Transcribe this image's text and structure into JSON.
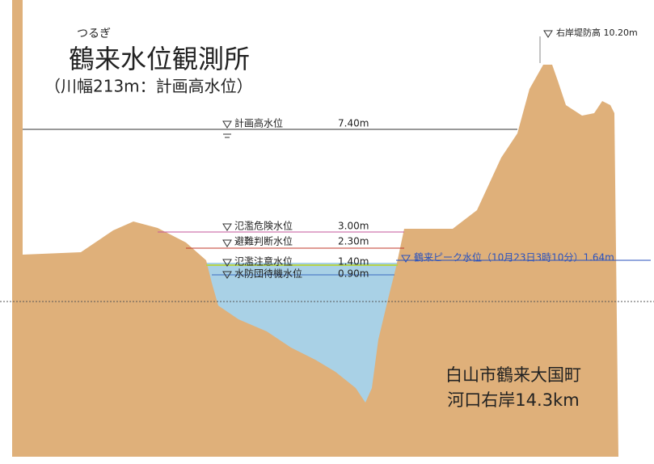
{
  "header": {
    "ruby": "つるぎ",
    "title": "鶴来水位観測所",
    "subtitle": "（川幅213m：計画高水位）"
  },
  "levels": [
    {
      "name": "計画高水位",
      "value": "7.40m"
    },
    {
      "name": "氾濫危険水位",
      "value": "3.00m"
    },
    {
      "name": "避難判断水位",
      "value": "2.30m"
    },
    {
      "name": "氾濫注意水位",
      "value": "1.40m"
    },
    {
      "name": "水防団待機水位",
      "value": "0.90m"
    }
  ],
  "dike": "右岸堤防高 10.20m",
  "peak": "鶴来ピーク水位（10月23日3時10分）1.64m",
  "location": {
    "line1": "白山市鶴来大国町",
    "line2": "河口右岸14.3km"
  }
}
